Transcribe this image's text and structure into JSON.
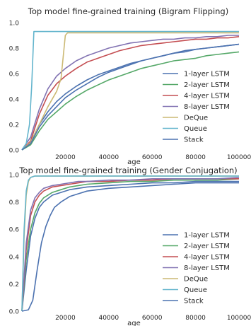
{
  "chart_data": [
    {
      "type": "line",
      "title": "Top model fine-grained training (Bigram Flipping)",
      "xlabel": "age",
      "ylabel": "",
      "xlim": [
        0,
        100000
      ],
      "ylim": [
        0.0,
        1.0
      ],
      "xticks": [
        {
          "v": 20000,
          "label": "20000"
        },
        {
          "v": 40000,
          "label": "40000"
        },
        {
          "v": 60000,
          "label": "60000"
        },
        {
          "v": 80000,
          "label": "80000"
        },
        {
          "v": 100000,
          "label": "100000"
        }
      ],
      "yticks": [
        {
          "v": 0.0,
          "label": "0.0"
        },
        {
          "v": 0.2,
          "label": "0.2"
        },
        {
          "v": 0.4,
          "label": "0.4"
        },
        {
          "v": 0.6,
          "label": "0.6"
        },
        {
          "v": 0.8,
          "label": "0.8"
        },
        {
          "v": 1.0,
          "label": "1.0"
        }
      ],
      "grid": false,
      "legend_position": "lower-right",
      "series": [
        {
          "name": "1-layer LSTM",
          "color": "#4c72b0",
          "x": [
            0,
            4000,
            8000,
            12000,
            16000,
            20000,
            25000,
            30000,
            35000,
            40000,
            45000,
            50000,
            55000,
            60000,
            65000,
            70000,
            75000,
            80000,
            85000,
            90000,
            95000,
            100000
          ],
          "y": [
            0.0,
            0.06,
            0.2,
            0.3,
            0.38,
            0.44,
            0.5,
            0.55,
            0.59,
            0.62,
            0.65,
            0.68,
            0.7,
            0.72,
            0.74,
            0.76,
            0.78,
            0.79,
            0.8,
            0.81,
            0.82,
            0.83
          ]
        },
        {
          "name": "2-layer LSTM",
          "color": "#55a868",
          "x": [
            0,
            4000,
            8000,
            12000,
            16000,
            20000,
            25000,
            30000,
            35000,
            40000,
            45000,
            50000,
            55000,
            60000,
            65000,
            70000,
            75000,
            80000,
            85000,
            90000,
            95000,
            100000
          ],
          "y": [
            0.0,
            0.04,
            0.15,
            0.24,
            0.3,
            0.36,
            0.42,
            0.47,
            0.51,
            0.55,
            0.58,
            0.61,
            0.64,
            0.66,
            0.68,
            0.7,
            0.71,
            0.72,
            0.74,
            0.75,
            0.76,
            0.77
          ]
        },
        {
          "name": "4-layer LSTM",
          "color": "#c44e52",
          "x": [
            0,
            4000,
            8000,
            12000,
            16000,
            20000,
            25000,
            30000,
            35000,
            40000,
            45000,
            50000,
            55000,
            60000,
            65000,
            70000,
            75000,
            80000,
            85000,
            90000,
            95000,
            100000
          ],
          "y": [
            0.0,
            0.07,
            0.28,
            0.43,
            0.52,
            0.58,
            0.64,
            0.69,
            0.72,
            0.75,
            0.78,
            0.8,
            0.82,
            0.83,
            0.84,
            0.85,
            0.86,
            0.87,
            0.87,
            0.88,
            0.88,
            0.89
          ]
        },
        {
          "name": "8-layer LSTM",
          "color": "#8172b2",
          "x": [
            0,
            4000,
            8000,
            12000,
            16000,
            20000,
            25000,
            30000,
            35000,
            40000,
            45000,
            50000,
            55000,
            60000,
            65000,
            70000,
            75000,
            80000,
            85000,
            90000,
            95000,
            100000
          ],
          "y": [
            0.0,
            0.1,
            0.32,
            0.48,
            0.58,
            0.64,
            0.7,
            0.74,
            0.77,
            0.8,
            0.82,
            0.84,
            0.85,
            0.86,
            0.87,
            0.87,
            0.88,
            0.88,
            0.89,
            0.89,
            0.9,
            0.9
          ]
        },
        {
          "name": "DeQue",
          "color": "#ccb974",
          "x": [
            0,
            4000,
            8000,
            12000,
            16000,
            18000,
            20000,
            21000,
            25000,
            30000,
            40000,
            50000,
            60000,
            70000,
            80000,
            90000,
            100000
          ],
          "y": [
            0.0,
            0.06,
            0.2,
            0.34,
            0.46,
            0.56,
            0.9,
            0.92,
            0.92,
            0.92,
            0.92,
            0.92,
            0.92,
            0.92,
            0.92,
            0.92,
            0.92
          ]
        },
        {
          "name": "Queue",
          "color": "#64b5cd",
          "x": [
            0,
            2000,
            3500,
            4500,
            5500,
            10000,
            20000,
            30000,
            40000,
            50000,
            60000,
            70000,
            80000,
            90000,
            100000
          ],
          "y": [
            0.0,
            0.05,
            0.2,
            0.5,
            0.93,
            0.93,
            0.93,
            0.93,
            0.93,
            0.93,
            0.93,
            0.93,
            0.93,
            0.93,
            0.93
          ]
        },
        {
          "name": "Stack",
          "color": "#4c72b0",
          "x": [
            0,
            4000,
            8000,
            12000,
            16000,
            20000,
            25000,
            30000,
            35000,
            40000,
            45000,
            50000,
            55000,
            60000,
            65000,
            70000,
            75000,
            80000,
            85000,
            90000,
            95000,
            100000
          ],
          "y": [
            0.0,
            0.05,
            0.18,
            0.27,
            0.34,
            0.41,
            0.47,
            0.52,
            0.57,
            0.61,
            0.64,
            0.67,
            0.7,
            0.72,
            0.74,
            0.76,
            0.77,
            0.79,
            0.8,
            0.81,
            0.82,
            0.83
          ]
        }
      ]
    },
    {
      "type": "line",
      "title": "Top model fine-grained training (Gender Conjugation)",
      "xlabel": "age",
      "ylabel": "",
      "xlim": [
        0,
        100000
      ],
      "ylim": [
        0.0,
        1.0
      ],
      "xticks": [
        {
          "v": 20000,
          "label": "20000"
        },
        {
          "v": 40000,
          "label": "40000"
        },
        {
          "v": 60000,
          "label": "60000"
        },
        {
          "v": 80000,
          "label": "80000"
        },
        {
          "v": 100000,
          "label": "100000"
        }
      ],
      "yticks": [
        {
          "v": 0.0,
          "label": "0.0"
        },
        {
          "v": 0.2,
          "label": "0.2"
        },
        {
          "v": 0.4,
          "label": "0.4"
        },
        {
          "v": 0.6,
          "label": "0.6"
        },
        {
          "v": 0.8,
          "label": "0.8"
        },
        {
          "v": 1.0,
          "label": "1.0"
        }
      ],
      "grid": false,
      "legend_position": "lower-right",
      "series": [
        {
          "name": "1-layer LSTM",
          "color": "#4c72b0",
          "x": [
            0,
            2000,
            4000,
            6000,
            8000,
            10000,
            14000,
            18000,
            22000,
            26000,
            30000,
            40000,
            50000,
            60000,
            70000,
            80000,
            90000,
            100000
          ],
          "y": [
            0.0,
            0.3,
            0.55,
            0.68,
            0.76,
            0.8,
            0.85,
            0.87,
            0.89,
            0.9,
            0.91,
            0.92,
            0.93,
            0.94,
            0.94,
            0.95,
            0.95,
            0.95
          ]
        },
        {
          "name": "2-layer LSTM",
          "color": "#55a868",
          "x": [
            0,
            2000,
            4000,
            6000,
            8000,
            10000,
            14000,
            18000,
            22000,
            26000,
            30000,
            40000,
            50000,
            60000,
            70000,
            80000,
            90000,
            100000
          ],
          "y": [
            0.0,
            0.38,
            0.6,
            0.72,
            0.79,
            0.83,
            0.87,
            0.89,
            0.91,
            0.92,
            0.93,
            0.94,
            0.95,
            0.95,
            0.96,
            0.96,
            0.96,
            0.97
          ]
        },
        {
          "name": "4-layer LSTM",
          "color": "#c44e52",
          "x": [
            0,
            2000,
            4000,
            6000,
            8000,
            10000,
            14000,
            18000,
            22000,
            26000,
            30000,
            40000,
            50000,
            60000,
            70000,
            80000,
            90000,
            100000
          ],
          "y": [
            0.0,
            0.45,
            0.7,
            0.8,
            0.85,
            0.88,
            0.91,
            0.92,
            0.93,
            0.94,
            0.95,
            0.95,
            0.96,
            0.96,
            0.97,
            0.97,
            0.97,
            0.97
          ]
        },
        {
          "name": "8-layer LSTM",
          "color": "#8172b2",
          "x": [
            0,
            2000,
            4000,
            6000,
            8000,
            10000,
            14000,
            18000,
            22000,
            26000,
            30000,
            40000,
            50000,
            60000,
            70000,
            80000,
            90000,
            100000
          ],
          "y": [
            0.0,
            0.5,
            0.74,
            0.83,
            0.87,
            0.9,
            0.92,
            0.93,
            0.94,
            0.95,
            0.95,
            0.96,
            0.96,
            0.97,
            0.97,
            0.97,
            0.97,
            0.98
          ]
        },
        {
          "name": "DeQue",
          "color": "#ccb974",
          "x": [
            0,
            1000,
            2000,
            3000,
            4000,
            6000,
            10000,
            20000,
            30000,
            40000,
            60000,
            80000,
            100000
          ],
          "y": [
            0.0,
            0.55,
            0.85,
            0.95,
            0.98,
            0.99,
            0.99,
            0.99,
            0.99,
            0.99,
            0.99,
            0.99,
            0.99
          ]
        },
        {
          "name": "Queue",
          "color": "#64b5cd",
          "x": [
            0,
            1000,
            2000,
            3000,
            4000,
            6000,
            10000,
            20000,
            30000,
            40000,
            60000,
            80000,
            100000
          ],
          "y": [
            0.0,
            0.6,
            0.88,
            0.96,
            0.98,
            0.99,
            0.99,
            0.99,
            0.99,
            0.99,
            0.99,
            0.99,
            0.99
          ]
        },
        {
          "name": "Stack",
          "color": "#4c72b0",
          "x": [
            0,
            3000,
            5000,
            7000,
            9000,
            11000,
            13000,
            15000,
            18000,
            22000,
            26000,
            30000,
            40000,
            50000,
            60000,
            70000,
            80000,
            90000,
            100000
          ],
          "y": [
            0.0,
            0.01,
            0.08,
            0.3,
            0.5,
            0.62,
            0.7,
            0.76,
            0.8,
            0.84,
            0.86,
            0.88,
            0.9,
            0.91,
            0.92,
            0.93,
            0.94,
            0.94,
            0.94
          ]
        }
      ]
    }
  ]
}
